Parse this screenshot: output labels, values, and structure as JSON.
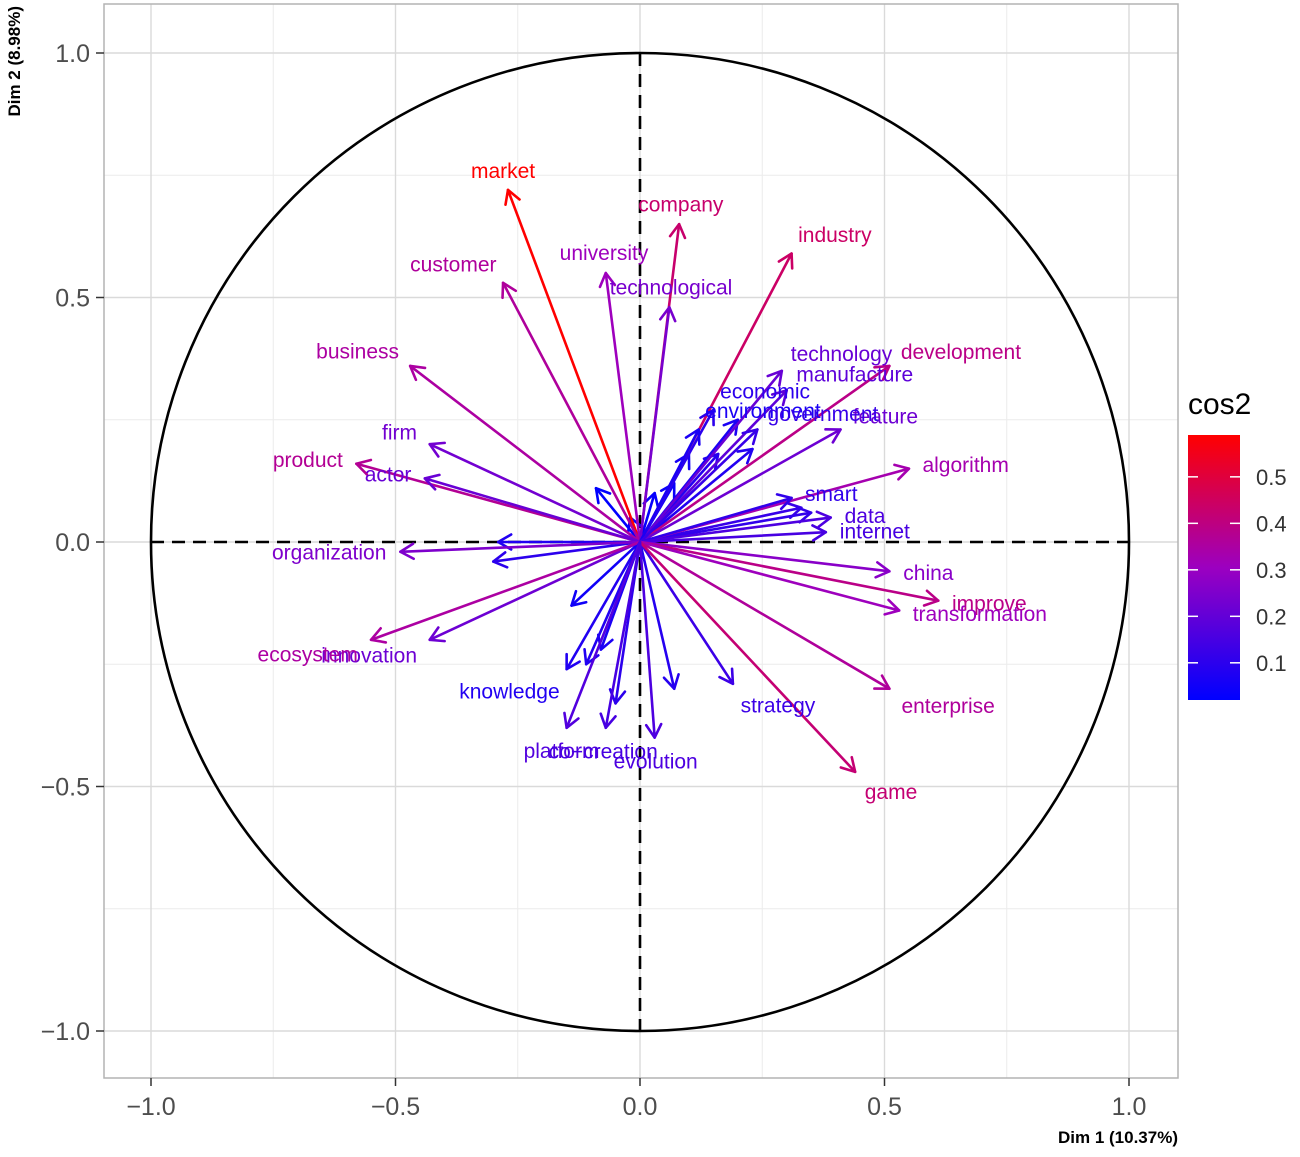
{
  "chart_data": {
    "type": "scatter",
    "subtype": "pca-variable-correlation-circle",
    "title": "",
    "xlabel": "Dim 1 (10.37%)",
    "ylabel": "Dim 2 (8.98%)",
    "xlim": [
      -1.1,
      1.1
    ],
    "ylim": [
      -1.1,
      1.1
    ],
    "x_ticks": [
      -1.0,
      -0.5,
      0.0,
      0.5,
      1.0
    ],
    "x_tick_labels": [
      "−1.0",
      "−0.5",
      "0.0",
      "0.5",
      "1.0"
    ],
    "y_ticks": [
      -1.0,
      -0.5,
      0.0,
      0.5,
      1.0
    ],
    "y_tick_labels": [
      "−1.0",
      "−0.5",
      "0.0",
      "0.5",
      "1.0"
    ],
    "grid": true,
    "unit_circle": true,
    "legend": {
      "title": "cos2",
      "placement": "right",
      "range": [
        0.02,
        0.59
      ],
      "ticks": [
        0.1,
        0.2,
        0.3,
        0.4,
        0.5
      ],
      "tick_labels": [
        "0.1",
        "0.2",
        "0.3",
        "0.4",
        "0.5"
      ],
      "colors": [
        "#0000ff",
        "#9c00c0",
        "#ff0000"
      ]
    },
    "variables": [
      {
        "name": "market",
        "x": -0.27,
        "y": 0.72,
        "cos2": 0.59
      },
      {
        "name": "company",
        "x": 0.08,
        "y": 0.65,
        "cos2": 0.43
      },
      {
        "name": "university",
        "x": -0.07,
        "y": 0.55,
        "cos2": 0.31
      },
      {
        "name": "customer",
        "x": -0.28,
        "y": 0.53,
        "cos2": 0.36
      },
      {
        "name": "industry",
        "x": 0.31,
        "y": 0.59,
        "cos2": 0.44
      },
      {
        "name": "technological",
        "x": 0.06,
        "y": 0.48,
        "cos2": 0.24
      },
      {
        "name": "technology",
        "x": 0.29,
        "y": 0.35,
        "cos2": 0.21
      },
      {
        "name": "development",
        "x": 0.51,
        "y": 0.36,
        "cos2": 0.39
      },
      {
        "name": "business",
        "x": -0.47,
        "y": 0.36,
        "cos2": 0.35
      },
      {
        "name": "economic",
        "x": 0.15,
        "y": 0.27,
        "cos2": 0.1
      },
      {
        "name": "manufacture",
        "x": 0.3,
        "y": 0.31,
        "cos2": 0.19
      },
      {
        "name": "firm",
        "x": -0.43,
        "y": 0.2,
        "cos2": 0.23
      },
      {
        "name": "environment",
        "x": 0.12,
        "y": 0.23,
        "cos2": 0.07
      },
      {
        "name": "feature",
        "x": 0.41,
        "y": 0.23,
        "cos2": 0.22
      },
      {
        "name": "product",
        "x": -0.58,
        "y": 0.16,
        "cos2": 0.37
      },
      {
        "name": "government",
        "x": 0.24,
        "y": 0.23,
        "cos2": 0.12
      },
      {
        "name": "algorithm",
        "x": 0.55,
        "y": 0.15,
        "cos2": 0.33
      },
      {
        "name": "actor",
        "x": -0.44,
        "y": 0.13,
        "cos2": 0.21
      },
      {
        "name": "smart",
        "x": 0.31,
        "y": 0.09,
        "cos2": 0.11
      },
      {
        "name": "data",
        "x": 0.39,
        "y": 0.05,
        "cos2": 0.16
      },
      {
        "name": "organization",
        "x": -0.49,
        "y": -0.02,
        "cos2": 0.25
      },
      {
        "name": "internet",
        "x": 0.38,
        "y": 0.02,
        "cos2": 0.15
      },
      {
        "name": "china",
        "x": 0.51,
        "y": -0.06,
        "cos2": 0.27
      },
      {
        "name": "improve",
        "x": 0.61,
        "y": -0.12,
        "cos2": 0.39
      },
      {
        "name": "transformation",
        "x": 0.53,
        "y": -0.14,
        "cos2": 0.31
      },
      {
        "name": "innovation",
        "x": -0.43,
        "y": -0.2,
        "cos2": 0.22
      },
      {
        "name": "ecosystem",
        "x": -0.55,
        "y": -0.2,
        "cos2": 0.35
      },
      {
        "name": "strategy",
        "x": 0.19,
        "y": -0.29,
        "cos2": 0.13
      },
      {
        "name": "enterprise",
        "x": 0.51,
        "y": -0.3,
        "cos2": 0.36
      },
      {
        "name": "knowledge",
        "x": -0.15,
        "y": -0.26,
        "cos2": 0.08
      },
      {
        "name": "platform",
        "x": -0.15,
        "y": -0.38,
        "cos2": 0.17
      },
      {
        "name": "game",
        "x": 0.44,
        "y": -0.47,
        "cos2": 0.42
      },
      {
        "name": "evolution",
        "x": 0.03,
        "y": -0.4,
        "cos2": 0.16
      },
      {
        "name": "co−creation",
        "x": -0.07,
        "y": -0.38,
        "cos2": 0.15
      }
    ],
    "unlabeled_arrows": [
      {
        "x": -0.29,
        "y": 0.0,
        "cos2": 0.08
      },
      {
        "x": -0.3,
        "y": -0.04,
        "cos2": 0.1
      },
      {
        "x": -0.09,
        "y": 0.11,
        "cos2": 0.02
      },
      {
        "x": -0.02,
        "y": 0.05,
        "cos2": 0.03
      },
      {
        "x": 0.03,
        "y": 0.1,
        "cos2": 0.03
      },
      {
        "x": 0.07,
        "y": 0.12,
        "cos2": 0.04
      },
      {
        "x": 0.1,
        "y": 0.18,
        "cos2": 0.06
      },
      {
        "x": 0.16,
        "y": 0.18,
        "cos2": 0.09
      },
      {
        "x": 0.2,
        "y": 0.25,
        "cos2": 0.07
      },
      {
        "x": 0.23,
        "y": 0.19,
        "cos2": 0.08
      },
      {
        "x": 0.33,
        "y": 0.07,
        "cos2": 0.12
      },
      {
        "x": 0.35,
        "y": 0.06,
        "cos2": 0.11
      },
      {
        "x": -0.14,
        "y": -0.13,
        "cos2": 0.05
      },
      {
        "x": -0.08,
        "y": -0.22,
        "cos2": 0.07
      },
      {
        "x": -0.11,
        "y": -0.25,
        "cos2": 0.08
      },
      {
        "x": -0.05,
        "y": -0.33,
        "cos2": 0.1
      },
      {
        "x": 0.07,
        "y": -0.3,
        "cos2": 0.09
      }
    ]
  }
}
